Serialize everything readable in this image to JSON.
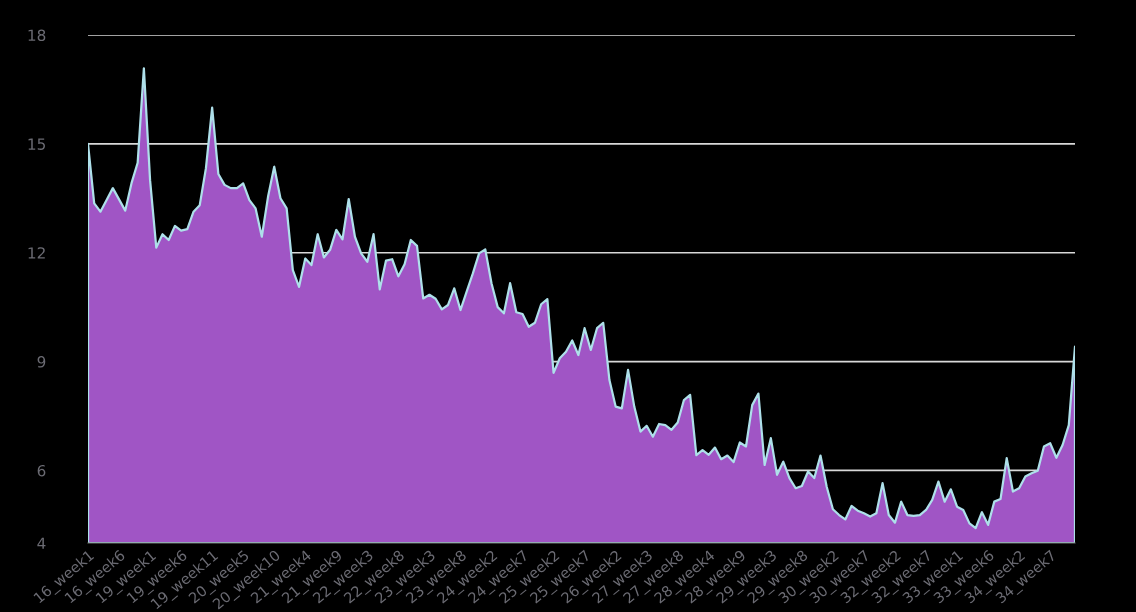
{
  "chart_data": {
    "type": "area",
    "categories": [
      "16_week1",
      null,
      null,
      null,
      null,
      "16_week6",
      null,
      null,
      null,
      null,
      "19_week1",
      null,
      null,
      null,
      null,
      "19_week6",
      null,
      null,
      null,
      null,
      "19_week11",
      null,
      null,
      null,
      null,
      "20_week5",
      null,
      null,
      null,
      null,
      "20_week10",
      null,
      null,
      null,
      null,
      "21_week4",
      null,
      null,
      null,
      null,
      "21_week9",
      null,
      null,
      null,
      null,
      "22_week3",
      null,
      null,
      null,
      null,
      "22_week8",
      null,
      null,
      null,
      null,
      "23_week3",
      null,
      null,
      null,
      null,
      "23_week8",
      null,
      null,
      null,
      null,
      "24_week2",
      null,
      null,
      null,
      null,
      "24_week7",
      null,
      null,
      null,
      null,
      "25_week2",
      null,
      null,
      null,
      null,
      "25_week7",
      null,
      null,
      null,
      null,
      "26_week2",
      null,
      null,
      null,
      null,
      "27_week3",
      null,
      null,
      null,
      null,
      "27_week8",
      null,
      null,
      null,
      null,
      "28_week4",
      null,
      null,
      null,
      null,
      "28_week9",
      null,
      null,
      null,
      null,
      "29_week3",
      null,
      null,
      null,
      null,
      "29_week8",
      null,
      null,
      null,
      null,
      "30_week2",
      null,
      null,
      null,
      null,
      "30_week7",
      null,
      null,
      null,
      null,
      "32_week2",
      null,
      null,
      null,
      null,
      "32_week7",
      null,
      null,
      null,
      null,
      "33_week1",
      null,
      null,
      null,
      null,
      "33_week6",
      null,
      null,
      null,
      null,
      "34_week2",
      null,
      null,
      null,
      null,
      "34_week7",
      null,
      null,
      null,
      null
    ],
    "series": [
      {
        "color": "#a055c5",
        "values": [
          15.0,
          13.36,
          13.13,
          13.45,
          13.78,
          13.47,
          13.16,
          13.91,
          14.48,
          17.08,
          14.0,
          12.14,
          12.51,
          12.35,
          12.74,
          12.61,
          12.65,
          13.13,
          13.31,
          14.33,
          16.0,
          14.17,
          13.87,
          13.78,
          13.78,
          13.91,
          13.45,
          13.22,
          12.44,
          13.54,
          14.37,
          13.5,
          13.22,
          11.52,
          11.06,
          11.84,
          11.66,
          12.51,
          11.87,
          12.08,
          12.63,
          12.37,
          13.48,
          12.44,
          11.98,
          11.75,
          12.51,
          10.99,
          11.78,
          11.82,
          11.35,
          11.68,
          12.35,
          12.19,
          10.74,
          10.84,
          10.73,
          10.44,
          10.56,
          11.02,
          10.42,
          10.93,
          11.43,
          11.98,
          12.09,
          11.16,
          10.5,
          10.33,
          11.16,
          10.36,
          10.31,
          9.96,
          10.07,
          10.58,
          10.72,
          8.69,
          9.09,
          9.27,
          9.58,
          9.18,
          9.92,
          9.32,
          9.92,
          10.07,
          8.49,
          7.76,
          7.71,
          8.77,
          7.76,
          7.07,
          7.23,
          6.93,
          7.28,
          7.25,
          7.12,
          7.32,
          7.94,
          8.08,
          6.42,
          6.56,
          6.43,
          6.63,
          6.31,
          6.41,
          6.23,
          6.77,
          6.66,
          7.8,
          8.12,
          6.15,
          6.89,
          5.88,
          6.24,
          5.79,
          5.51,
          5.57,
          5.97,
          5.79,
          6.41,
          5.55,
          4.93,
          4.77,
          4.65,
          5.02,
          4.89,
          4.82,
          4.73,
          4.82,
          5.65,
          4.77,
          4.56,
          5.14,
          4.77,
          4.75,
          4.77,
          4.91,
          5.19,
          5.69,
          5.14,
          5.48,
          5.0,
          4.91,
          4.54,
          4.41,
          4.85,
          4.5,
          5.14,
          5.21,
          6.34,
          5.42,
          5.51,
          5.83,
          5.92,
          5.99,
          6.66,
          6.75,
          6.35,
          6.7,
          7.25,
          9.41
        ]
      }
    ],
    "ylim": [
      4,
      18
    ],
    "yticks": [
      4,
      6,
      9,
      12,
      15,
      18
    ],
    "grid": "y"
  }
}
